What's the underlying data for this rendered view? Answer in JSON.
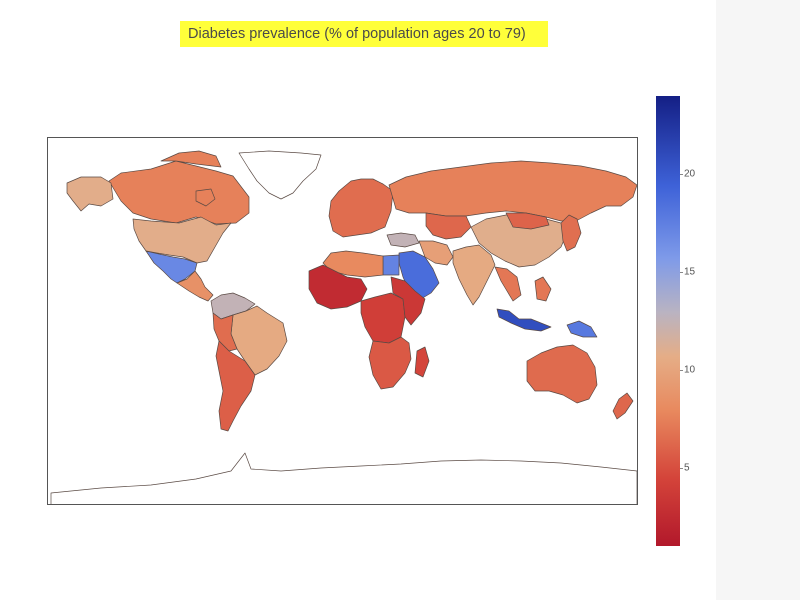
{
  "chart_data": {
    "type": "choropleth",
    "title": "Diabetes prevalence (% of population ages 20 to 79)",
    "colorbar": {
      "min": 1,
      "max": 24,
      "ticks": [
        5,
        10,
        15,
        20
      ],
      "colorscale": [
        "#b2182b",
        "#e07050",
        "#e8a27a",
        "#d5b49f",
        "#b5b5c8",
        "#6f8ee6",
        "#3c63d8",
        "#17228a"
      ]
    },
    "regions": [
      {
        "name": "Canada",
        "value": 7.5
      },
      {
        "name": "Alaska (United States)",
        "value": 10.8
      },
      {
        "name": "United States",
        "value": 10.8
      },
      {
        "name": "Mexico",
        "value": 16.9
      },
      {
        "name": "Central America",
        "value": 8.5
      },
      {
        "name": "Colombia / Venezuela",
        "value": 12.5
      },
      {
        "name": "Brazil",
        "value": 10.4
      },
      {
        "name": "Peru",
        "value": 6.5
      },
      {
        "name": "Argentina / Chile",
        "value": 5.8
      },
      {
        "name": "Greenland",
        "value": 0
      },
      {
        "name": "Europe",
        "value": 6.5
      },
      {
        "name": "Russia",
        "value": 7.5
      },
      {
        "name": "Kazakhstan",
        "value": 6.2
      },
      {
        "name": "China",
        "value": 10.9
      },
      {
        "name": "Mongolia",
        "value": 6.0
      },
      {
        "name": "India",
        "value": 10.4
      },
      {
        "name": "Saudi Arabia",
        "value": 18.7
      },
      {
        "name": "Egypt",
        "value": 17.2
      },
      {
        "name": "Libya / Algeria",
        "value": 8.0
      },
      {
        "name": "Turkey",
        "value": 12.5
      },
      {
        "name": "Iran",
        "value": 9.6
      },
      {
        "name": "West Africa",
        "value": 2.5
      },
      {
        "name": "Central Africa",
        "value": 4.0
      },
      {
        "name": "East Africa",
        "value": 3.5
      },
      {
        "name": "Southern Africa",
        "value": 5.5
      },
      {
        "name": "Madagascar",
        "value": 4.5
      },
      {
        "name": "Southeast Asia",
        "value": 7.0
      },
      {
        "name": "Indonesia",
        "value": 20.8
      },
      {
        "name": "Papua New Guinea",
        "value": 17.9
      },
      {
        "name": "Australia",
        "value": 6.4
      },
      {
        "name": "Japan / Korea",
        "value": 6.6
      },
      {
        "name": "New Zealand",
        "value": 6.2
      },
      {
        "name": "Antarctica",
        "value": 0
      }
    ]
  }
}
